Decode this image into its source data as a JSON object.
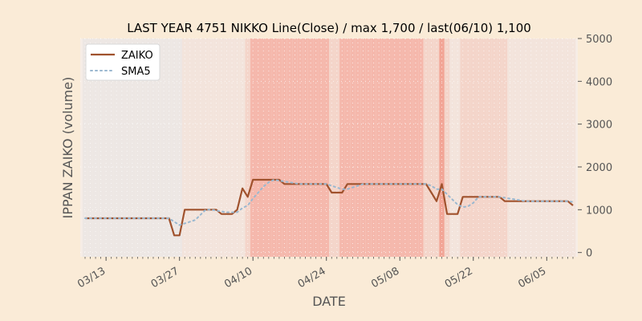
{
  "chart_data": {
    "type": "line",
    "title": "LAST YEAR 4751 NIKKO Line(Close) / max 1,700 / last(06/10) 1,100",
    "xlabel": "DATE",
    "ylabel": "IPPAN ZAIKO (volume)",
    "ylim": [
      -100,
      5000
    ],
    "yticks": [
      0,
      1000,
      2000,
      3000,
      4000,
      5000
    ],
    "ytick_labels": [
      "0",
      "1000",
      "2000",
      "3000",
      "4000",
      "5000"
    ],
    "y_axis_side": "right",
    "xticks": [
      "03/13",
      "03/27",
      "04/10",
      "04/24",
      "05/08",
      "05/22",
      "06/05"
    ],
    "x": [
      "03/09",
      "03/10",
      "03/11",
      "03/12",
      "03/13",
      "03/14",
      "03/15",
      "03/16",
      "03/17",
      "03/18",
      "03/19",
      "03/20",
      "03/21",
      "03/22",
      "03/23",
      "03/24",
      "03/25",
      "03/26",
      "03/27",
      "03/28",
      "03/29",
      "03/30",
      "03/31",
      "04/01",
      "04/02",
      "04/03",
      "04/04",
      "04/05",
      "04/06",
      "04/07",
      "04/08",
      "04/09",
      "04/10",
      "04/11",
      "04/12",
      "04/13",
      "04/14",
      "04/15",
      "04/16",
      "04/17",
      "04/18",
      "04/19",
      "04/20",
      "04/21",
      "04/22",
      "04/23",
      "04/24",
      "04/25",
      "04/26",
      "04/27",
      "04/28",
      "04/29",
      "04/30",
      "05/01",
      "05/02",
      "05/03",
      "05/04",
      "05/05",
      "05/06",
      "05/07",
      "05/08",
      "05/09",
      "05/10",
      "05/11",
      "05/12",
      "05/13",
      "05/14",
      "05/15",
      "05/16",
      "05/17",
      "05/18",
      "05/19",
      "05/20",
      "05/21",
      "05/22",
      "05/23",
      "05/24",
      "05/25",
      "05/26",
      "05/27",
      "05/28",
      "05/29",
      "05/30",
      "05/31",
      "06/01",
      "06/02",
      "06/03",
      "06/04",
      "06/05",
      "06/06",
      "06/07",
      "06/08",
      "06/09",
      "06/10"
    ],
    "series": [
      {
        "name": "ZAIKO",
        "color": "#a0522d",
        "values": [
          800,
          800,
          800,
          800,
          800,
          800,
          800,
          800,
          800,
          800,
          800,
          800,
          800,
          800,
          800,
          800,
          800,
          400,
          400,
          1000,
          1000,
          1000,
          1000,
          1000,
          1000,
          1000,
          900,
          900,
          900,
          1000,
          1500,
          1300,
          1700,
          1700,
          1700,
          1700,
          1700,
          1700,
          1600,
          1600,
          1600,
          1600,
          1600,
          1600,
          1600,
          1600,
          1600,
          1400,
          1400,
          1400,
          1600,
          1600,
          1600,
          1600,
          1600,
          1600,
          1600,
          1600,
          1600,
          1600,
          1600,
          1600,
          1600,
          1600,
          1600,
          1600,
          1400,
          1200,
          1600,
          900,
          900,
          900,
          1300,
          1300,
          1300,
          1300,
          1300,
          1300,
          1300,
          1300,
          1200,
          1200,
          1200,
          1200,
          1200,
          1200,
          1200,
          1200,
          1200,
          1200,
          1200,
          1200,
          1200,
          1100
        ]
      },
      {
        "name": "SMA5",
        "color": "#9ab8d0",
        "values": [
          800,
          800,
          800,
          800,
          800,
          800,
          800,
          800,
          800,
          800,
          800,
          800,
          800,
          800,
          800,
          800,
          800,
          720,
          640,
          680,
          720,
          760,
          880,
          1000,
          1000,
          980,
          960,
          940,
          940,
          940,
          1040,
          1100,
          1260,
          1400,
          1540,
          1640,
          1700,
          1680,
          1660,
          1640,
          1620,
          1600,
          1600,
          1600,
          1600,
          1600,
          1600,
          1560,
          1520,
          1480,
          1480,
          1520,
          1560,
          1600,
          1600,
          1600,
          1600,
          1600,
          1600,
          1600,
          1600,
          1600,
          1600,
          1600,
          1600,
          1600,
          1560,
          1480,
          1480,
          1360,
          1240,
          1120,
          1060,
          1080,
          1160,
          1300,
          1300,
          1300,
          1300,
          1300,
          1280,
          1260,
          1240,
          1220,
          1200,
          1200,
          1200,
          1200,
          1200,
          1200,
          1200,
          1200,
          1200,
          1180
        ]
      }
    ],
    "legend": "upper-left",
    "grid": true,
    "background_color": "#faebd7",
    "band_colors": [
      "#ede7e4",
      "#f3e4dc",
      "#f4d5ca",
      "#f5b8ac",
      "#f2a596"
    ],
    "band_levels": [
      0,
      0,
      0,
      0,
      0,
      0,
      0,
      0,
      0,
      0,
      0,
      0,
      0,
      0,
      0,
      0,
      0,
      0,
      0,
      1,
      1,
      1,
      1,
      1,
      1,
      1,
      1,
      1,
      1,
      1,
      1,
      2,
      3,
      3,
      3,
      3,
      3,
      3,
      3,
      3,
      3,
      3,
      3,
      3,
      3,
      3,
      3,
      2,
      2,
      3,
      3,
      3,
      3,
      3,
      3,
      3,
      3,
      3,
      3,
      3,
      3,
      3,
      3,
      3,
      3,
      2,
      2,
      2,
      4,
      2,
      1,
      1,
      2,
      2,
      2,
      2,
      2,
      2,
      2,
      2,
      2,
      1,
      1,
      1,
      1,
      1,
      1,
      1,
      1,
      1,
      1,
      1,
      1,
      1
    ]
  }
}
